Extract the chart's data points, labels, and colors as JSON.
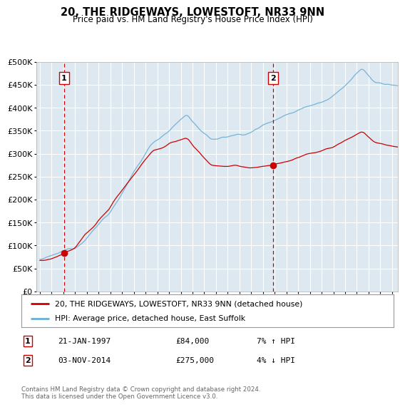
{
  "title": "20, THE RIDGEWAYS, LOWESTOFT, NR33 9NN",
  "subtitle": "Price paid vs. HM Land Registry's House Price Index (HPI)",
  "background_color": "#dde8f0",
  "ylim": [
    0,
    500000
  ],
  "yticks": [
    0,
    50000,
    100000,
    150000,
    200000,
    250000,
    300000,
    350000,
    400000,
    450000,
    500000
  ],
  "xlim_start": 1994.7,
  "xlim_end": 2025.5,
  "sale1_x": 1997.05,
  "sale1_y": 84000,
  "sale2_x": 2014.84,
  "sale2_y": 275000,
  "legend_label1": "20, THE RIDGEWAYS, LOWESTOFT, NR33 9NN (detached house)",
  "legend_label2": "HPI: Average price, detached house, East Suffolk",
  "ann1_date": "21-JAN-1997",
  "ann1_price": "£84,000",
  "ann1_hpi": "7% ↑ HPI",
  "ann2_date": "03-NOV-2014",
  "ann2_price": "£275,000",
  "ann2_hpi": "4% ↓ HPI",
  "footer": "Contains HM Land Registry data © Crown copyright and database right 2024.\nThis data is licensed under the Open Government Licence v3.0.",
  "red_color": "#cc0000",
  "blue_color": "#6baed6",
  "grid_color": "#ffffff"
}
